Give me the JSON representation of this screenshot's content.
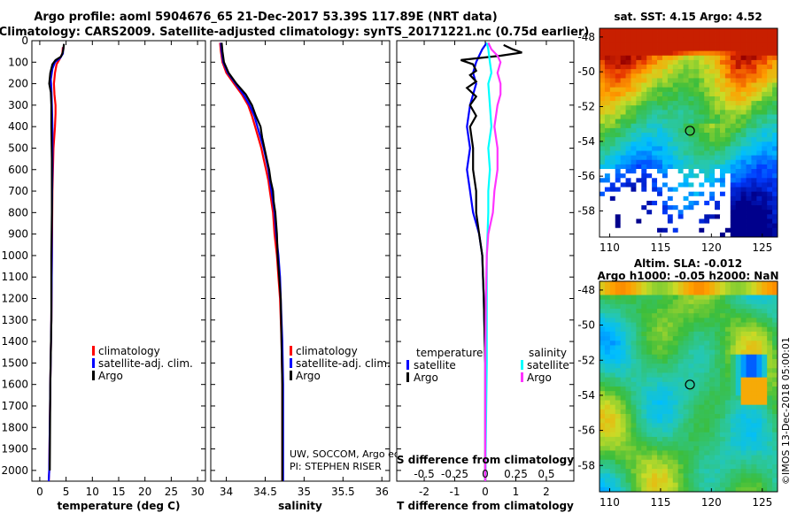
{
  "header": {
    "line1": "Argo profile: aoml 5904676_65 21-Dec-2017 53.39S 117.89E (NRT data)",
    "line2": "Climatology: CARS2009. Satellite-adjusted climatology: synTS_20171221.nc (0.75d earlier)"
  },
  "colors": {
    "climatology": "#ff0000",
    "satellite": "#0000ff",
    "argo": "#000000",
    "sal_satellite": "#00ffff",
    "sal_argo": "#ff33ff"
  },
  "chart_data": [
    {
      "id": "temperature",
      "type": "line",
      "xlabel": "temperature (deg C)",
      "xlim": [
        -1.5,
        31.5
      ],
      "xticks": [
        0,
        5,
        10,
        15,
        20,
        25,
        30
      ],
      "xtick_labels": [
        "0",
        "5",
        "10",
        "15",
        "20",
        "25",
        "30"
      ],
      "ylim": [
        2050,
        0
      ],
      "yticks": [
        0,
        100,
        200,
        300,
        400,
        500,
        600,
        700,
        800,
        900,
        1000,
        1100,
        1200,
        1300,
        1400,
        1500,
        1600,
        1700,
        1800,
        1900,
        2000
      ],
      "ytick_labels": [
        "0",
        "100",
        "200",
        "300",
        "400",
        "500",
        "600",
        "700",
        "800",
        "900",
        "1000",
        "1100",
        "1200",
        "1300",
        "1400",
        "1500",
        "1600",
        "1700",
        "1800",
        "1900",
        "2000"
      ],
      "legend": [
        "climatology",
        "satellite-adj. clim.",
        "Argo"
      ],
      "series": [
        {
          "name": "climatology",
          "color_key": "climatology",
          "points": [
            [
              4.4,
              30
            ],
            [
              4.3,
              60
            ],
            [
              3.8,
              85
            ],
            [
              3.2,
              110
            ],
            [
              2.9,
              150
            ],
            [
              2.7,
              200
            ],
            [
              2.8,
              250
            ],
            [
              3.0,
              300
            ],
            [
              3.0,
              340
            ],
            [
              2.9,
              400
            ],
            [
              2.6,
              500
            ],
            [
              2.4,
              700
            ],
            [
              2.3,
              1000
            ],
            [
              2.2,
              1300
            ],
            [
              2.0,
              1600
            ],
            [
              1.8,
              2000
            ],
            [
              1.7,
              2050
            ]
          ]
        },
        {
          "name": "satellite-adj. clim.",
          "color_key": "satellite",
          "points": [
            [
              4.5,
              30
            ],
            [
              4.4,
              60
            ],
            [
              3.9,
              80
            ],
            [
              2.9,
              100
            ],
            [
              2.4,
              130
            ],
            [
              2.1,
              180
            ],
            [
              2.2,
              220
            ],
            [
              2.3,
              300
            ],
            [
              2.4,
              400
            ],
            [
              2.4,
              600
            ],
            [
              2.3,
              800
            ],
            [
              2.3,
              1000
            ],
            [
              2.2,
              1300
            ],
            [
              2.0,
              1600
            ],
            [
              1.8,
              2000
            ],
            [
              1.7,
              2050
            ]
          ]
        },
        {
          "name": "Argo",
          "color_key": "argo",
          "points": [
            [
              4.6,
              15
            ],
            [
              4.5,
              40
            ],
            [
              4.3,
              60
            ],
            [
              4.0,
              75
            ],
            [
              3.0,
              90
            ],
            [
              2.4,
              110
            ],
            [
              2.0,
              150
            ],
            [
              1.8,
              200
            ],
            [
              2.1,
              240
            ],
            [
              2.2,
              300
            ],
            [
              2.2,
              400
            ],
            [
              2.3,
              550
            ],
            [
              2.3,
              800
            ],
            [
              2.2,
              1000
            ],
            [
              2.2,
              1300
            ],
            [
              2.0,
              1600
            ],
            [
              1.9,
              2000
            ]
          ]
        }
      ]
    },
    {
      "id": "salinity",
      "type": "line",
      "xlabel": "salinity",
      "xlim": [
        33.8,
        36.1
      ],
      "xticks": [
        34,
        34.5,
        35,
        35.5,
        36
      ],
      "xtick_labels": [
        "34",
        "34.5",
        "35",
        "35.5",
        "36"
      ],
      "ylim": [
        2050,
        0
      ],
      "legend": [
        "climatology",
        "satellite-adj. clim.",
        "Argo"
      ],
      "annotations": [
        "UW, SOCCOM, Argo equivalent",
        "PI: STEPHEN RISER"
      ],
      "series": [
        {
          "name": "climatology",
          "color_key": "climatology",
          "points": [
            [
              33.92,
              10
            ],
            [
              33.93,
              50
            ],
            [
              33.95,
              100
            ],
            [
              34.0,
              150
            ],
            [
              34.1,
              200
            ],
            [
              34.2,
              250
            ],
            [
              34.28,
              300
            ],
            [
              34.33,
              350
            ],
            [
              34.37,
              400
            ],
            [
              34.41,
              450
            ],
            [
              34.45,
              500
            ],
            [
              34.48,
              550
            ],
            [
              34.51,
              600
            ],
            [
              34.54,
              650
            ],
            [
              34.56,
              700
            ],
            [
              34.58,
              750
            ],
            [
              34.6,
              800
            ],
            [
              34.62,
              900
            ],
            [
              34.65,
              1000
            ],
            [
              34.67,
              1100
            ],
            [
              34.69,
              1200
            ],
            [
              34.71,
              1400
            ],
            [
              34.72,
              1600
            ],
            [
              34.72,
              2050
            ]
          ]
        },
        {
          "name": "satellite-adj. clim.",
          "color_key": "satellite",
          "points": [
            [
              33.93,
              10
            ],
            [
              33.94,
              50
            ],
            [
              33.96,
              100
            ],
            [
              34.02,
              150
            ],
            [
              34.12,
              200
            ],
            [
              34.22,
              250
            ],
            [
              34.3,
              300
            ],
            [
              34.36,
              350
            ],
            [
              34.4,
              400
            ],
            [
              34.44,
              450
            ],
            [
              34.48,
              500
            ],
            [
              34.51,
              550
            ],
            [
              34.54,
              600
            ],
            [
              34.56,
              650
            ],
            [
              34.58,
              700
            ],
            [
              34.6,
              750
            ],
            [
              34.62,
              800
            ],
            [
              34.64,
              900
            ],
            [
              34.67,
              1000
            ],
            [
              34.69,
              1100
            ],
            [
              34.7,
              1200
            ],
            [
              34.72,
              1400
            ],
            [
              34.73,
              1600
            ],
            [
              34.73,
              2050
            ]
          ]
        },
        {
          "name": "Argo",
          "color_key": "argo",
          "points": [
            [
              33.94,
              10
            ],
            [
              33.95,
              50
            ],
            [
              33.97,
              100
            ],
            [
              34.03,
              150
            ],
            [
              34.13,
              200
            ],
            [
              34.25,
              250
            ],
            [
              34.33,
              300
            ],
            [
              34.38,
              350
            ],
            [
              34.44,
              400
            ],
            [
              34.46,
              450
            ],
            [
              34.49,
              500
            ],
            [
              34.52,
              550
            ],
            [
              34.55,
              600
            ],
            [
              34.57,
              650
            ],
            [
              34.6,
              700
            ],
            [
              34.61,
              750
            ],
            [
              34.63,
              800
            ],
            [
              34.65,
              900
            ],
            [
              34.66,
              1000
            ],
            [
              34.68,
              1100
            ],
            [
              34.7,
              1200
            ],
            [
              34.71,
              1400
            ],
            [
              34.72,
              1600
            ],
            [
              34.72,
              2050
            ]
          ]
        }
      ]
    },
    {
      "id": "difference",
      "type": "line",
      "xlabel": "T difference from climatology",
      "xlabel_top": "S difference from climatology",
      "xlim": [
        -2.9,
        2.9
      ],
      "xticks": [
        -2,
        -1,
        0,
        1,
        2
      ],
      "xtick_labels": [
        "-2",
        "-1",
        "0",
        "1",
        "2"
      ],
      "top_ticks": [
        -0.5,
        -0.25,
        0,
        0.25,
        0.5
      ],
      "top_tick_labels": [
        "-0.5",
        "-0.25",
        "0",
        "0.25",
        "0.5"
      ],
      "ylim": [
        2050,
        0
      ],
      "legend_left_title": "temperature",
      "legend_right_title": "salinity",
      "legend_left": [
        "satellite",
        "Argo"
      ],
      "legend_right": [
        "satellite",
        "Argo"
      ],
      "series": [
        {
          "name": "T satellite",
          "color_key": "satellite",
          "points": [
            [
              0.05,
              10
            ],
            [
              -0.1,
              40
            ],
            [
              -0.2,
              70
            ],
            [
              -0.3,
              100
            ],
            [
              -0.4,
              150
            ],
            [
              -0.3,
              200
            ],
            [
              -0.5,
              300
            ],
            [
              -0.6,
              400
            ],
            [
              -0.5,
              500
            ],
            [
              -0.6,
              600
            ],
            [
              -0.5,
              700
            ],
            [
              -0.4,
              800
            ],
            [
              -0.2,
              900
            ],
            [
              -0.1,
              1000
            ],
            [
              -0.05,
              1200
            ],
            [
              0,
              1500
            ],
            [
              0,
              2050
            ]
          ]
        },
        {
          "name": "T Argo",
          "color_key": "argo",
          "points": [
            [
              0.6,
              20
            ],
            [
              0.9,
              40
            ],
            [
              1.2,
              55
            ],
            [
              0.5,
              70
            ],
            [
              -0.8,
              90
            ],
            [
              -0.4,
              110
            ],
            [
              -0.3,
              140
            ],
            [
              -0.5,
              160
            ],
            [
              -0.3,
              190
            ],
            [
              -0.6,
              220
            ],
            [
              -0.3,
              260
            ],
            [
              -0.5,
              300
            ],
            [
              -0.3,
              350
            ],
            [
              -0.5,
              400
            ],
            [
              -0.4,
              500
            ],
            [
              -0.4,
              600
            ],
            [
              -0.3,
              700
            ],
            [
              -0.3,
              800
            ],
            [
              -0.2,
              900
            ],
            [
              -0.1,
              1000
            ],
            [
              -0.05,
              1200
            ],
            [
              0,
              1500
            ],
            [
              0,
              2050
            ]
          ]
        },
        {
          "name": "S satellite",
          "color_key": "sal_satellite",
          "points": [
            [
              0.05,
              10
            ],
            [
              0.1,
              40
            ],
            [
              0.15,
              100
            ],
            [
              0.2,
              150
            ],
            [
              0.1,
              200
            ],
            [
              0.15,
              300
            ],
            [
              0.2,
              400
            ],
            [
              0.1,
              500
            ],
            [
              0.15,
              600
            ],
            [
              0.1,
              700
            ],
            [
              0.1,
              800
            ],
            [
              0.05,
              1000
            ],
            [
              0.05,
              1500
            ],
            [
              0,
              2050
            ]
          ]
        },
        {
          "name": "S Argo",
          "color_key": "sal_argo",
          "points": [
            [
              0.1,
              10
            ],
            [
              0.2,
              40
            ],
            [
              0.4,
              70
            ],
            [
              0.5,
              100
            ],
            [
              0.4,
              150
            ],
            [
              0.5,
              200
            ],
            [
              0.5,
              250
            ],
            [
              0.4,
              300
            ],
            [
              0.3,
              400
            ],
            [
              0.4,
              500
            ],
            [
              0.4,
              600
            ],
            [
              0.3,
              700
            ],
            [
              0.25,
              800
            ],
            [
              0.1,
              900
            ],
            [
              0.05,
              1000
            ],
            [
              0.02,
              1200
            ],
            [
              0,
              1500
            ],
            [
              0,
              2050
            ]
          ]
        }
      ]
    },
    {
      "id": "sst_map",
      "type": "heatmap",
      "title": "sat. SST: 4.15 Argo: 4.52",
      "xlim": [
        109,
        126.5
      ],
      "ylim": [
        -59.5,
        -47.5
      ],
      "xticks": [
        110,
        115,
        120,
        125
      ],
      "xtick_labels": [
        "110",
        "115",
        "120",
        "125"
      ],
      "yticks": [
        -48,
        -50,
        -52,
        -54,
        -56,
        -58
      ],
      "ytick_labels": [
        "-48",
        "-50",
        "-52",
        "-54",
        "-56",
        "-58"
      ],
      "marker": [
        117.89,
        -53.39
      ]
    },
    {
      "id": "sla_map",
      "type": "heatmap",
      "title": "Altim. SLA: -0.012",
      "subtitle": "Argo h1000: -0.05 h2000: NaN",
      "xlim": [
        109,
        126.5
      ],
      "ylim": [
        -59.5,
        -47.5
      ],
      "xticks": [
        110,
        115,
        120,
        125
      ],
      "xtick_labels": [
        "110",
        "115",
        "120",
        "125"
      ],
      "yticks": [
        -48,
        -50,
        -52,
        -54,
        -56,
        -58
      ],
      "ytick_labels": [
        "-48",
        "-50",
        "-52",
        "-54",
        "-56",
        "-58"
      ],
      "marker": [
        117.89,
        -53.39
      ],
      "side_label": "©IMOS 13-Dec-2018 05:00:01"
    }
  ]
}
